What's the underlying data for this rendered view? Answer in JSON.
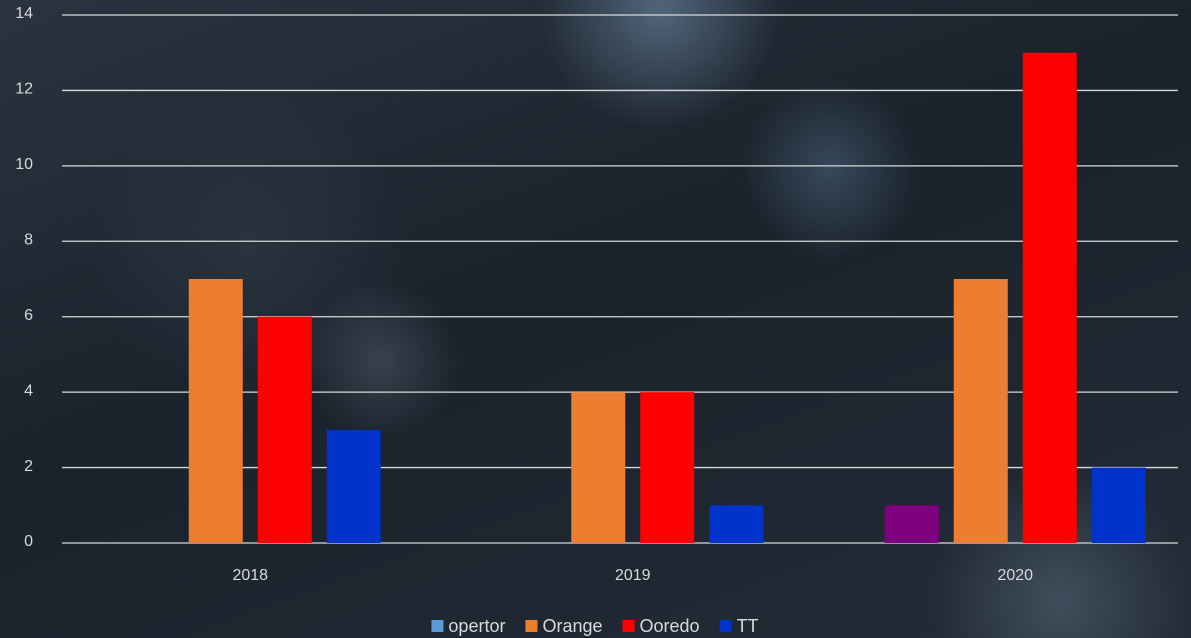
{
  "chart_data": {
    "type": "bar",
    "categories": [
      "2018",
      "2019",
      "2020"
    ],
    "series": [
      {
        "name": "opertor",
        "color": "#5b9bd5",
        "bar_color": "#7f007f",
        "values": [
          null,
          null,
          1
        ]
      },
      {
        "name": "Orange",
        "color": "#ed7d31",
        "values": [
          7,
          4,
          7
        ]
      },
      {
        "name": "Ooredo",
        "color": "#ff0000",
        "values": [
          6,
          4,
          13
        ]
      },
      {
        "name": "TT",
        "color": "#0033cc",
        "values": [
          3,
          1,
          2
        ]
      }
    ],
    "ylim": [
      0,
      14
    ],
    "yticks": [
      0,
      2,
      4,
      6,
      8,
      10,
      12,
      14
    ],
    "grid": true,
    "legend": "bottom"
  }
}
